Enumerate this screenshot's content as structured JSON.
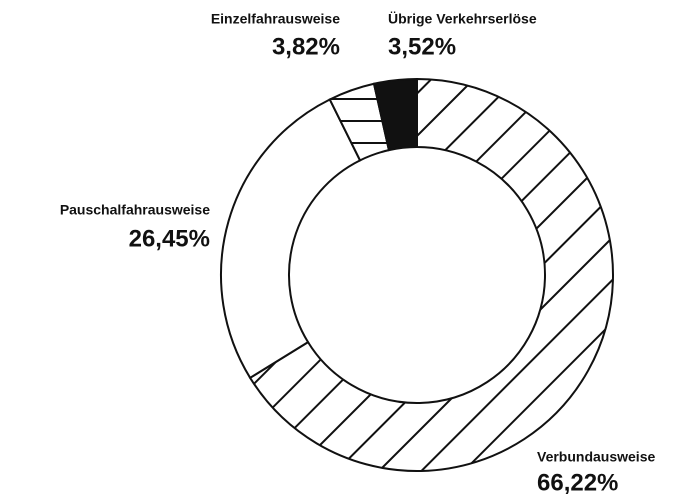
{
  "chart_data": {
    "type": "pie",
    "categories": [
      "Verbundausweise",
      "Pauschalfahrausweise",
      "Einzelfahrausweise",
      "Übrige Verkehrserlöse"
    ],
    "values": [
      66.22,
      26.45,
      3.82,
      3.52
    ],
    "value_labels": [
      "66,22%",
      "26,45%",
      "3,82%",
      "3,52%"
    ]
  }
}
